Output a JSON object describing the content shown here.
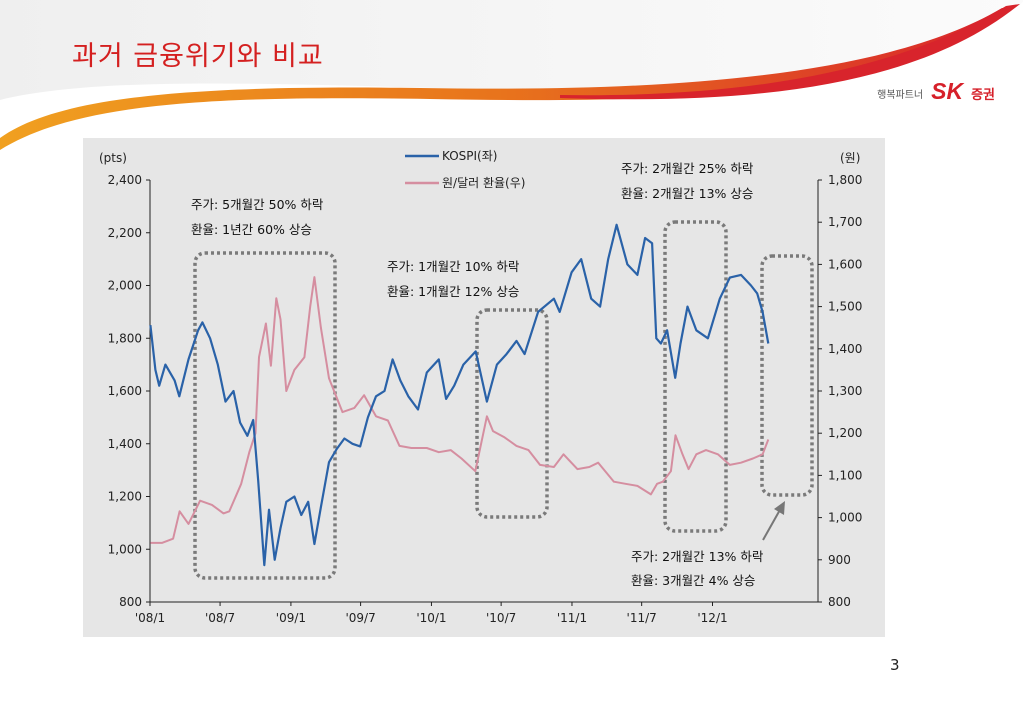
{
  "slide": {
    "title": "과거 금융위기와 비교",
    "page_number": "3",
    "brand": {
      "tagline": "행복파트너",
      "logo": "SK",
      "subtitle": "증권"
    },
    "colors": {
      "title": "#d42020",
      "brand_red": "#d6202a",
      "swoosh_orange": "#f0a020",
      "swoosh_red": "#d8242c"
    }
  },
  "chart_data": {
    "type": "line",
    "left_axis": {
      "label": "(pts)",
      "ticks": [
        "2,400",
        "2,200",
        "2,000",
        "1,800",
        "1,600",
        "1,400",
        "1,200",
        "1,000",
        "800"
      ],
      "ylim": [
        800,
        2400
      ]
    },
    "right_axis": {
      "label": "(원)",
      "ticks": [
        "1,800",
        "1,700",
        "1,600",
        "1,500",
        "1,400",
        "1,300",
        "1,200",
        "1,100",
        "1,000",
        "900",
        "800"
      ],
      "ylim": [
        800,
        1800
      ]
    },
    "x_ticks": [
      "'08/1",
      "'08/7",
      "'09/1",
      "'09/7",
      "'10/1",
      "'10/7",
      "'11/1",
      "'11/7",
      "'12/1"
    ],
    "x_range": [
      "2008-01",
      "2012-10"
    ],
    "legend_position": "top-center",
    "series": [
      {
        "name": "KOSPI(좌)",
        "axis": "left",
        "color": "#2a62a8",
        "points": [
          [
            "2008-01-02",
            1850
          ],
          [
            "2008-01-15",
            1680
          ],
          [
            "2008-01-25",
            1620
          ],
          [
            "2008-02-10",
            1700
          ],
          [
            "2008-03-05",
            1640
          ],
          [
            "2008-03-17",
            1580
          ],
          [
            "2008-04-10",
            1720
          ],
          [
            "2008-05-05",
            1830
          ],
          [
            "2008-05-16",
            1860
          ],
          [
            "2008-06-05",
            1800
          ],
          [
            "2008-06-25",
            1700
          ],
          [
            "2008-07-15",
            1560
          ],
          [
            "2008-08-05",
            1600
          ],
          [
            "2008-08-22",
            1480
          ],
          [
            "2008-09-10",
            1430
          ],
          [
            "2008-09-25",
            1490
          ],
          [
            "2008-10-08",
            1260
          ],
          [
            "2008-10-24",
            940
          ],
          [
            "2008-11-05",
            1150
          ],
          [
            "2008-11-20",
            960
          ],
          [
            "2008-12-05",
            1080
          ],
          [
            "2008-12-20",
            1180
          ],
          [
            "2009-01-10",
            1200
          ],
          [
            "2009-01-28",
            1130
          ],
          [
            "2009-02-15",
            1180
          ],
          [
            "2009-03-03",
            1020
          ],
          [
            "2009-03-20",
            1160
          ],
          [
            "2009-04-10",
            1330
          ],
          [
            "2009-04-30",
            1380
          ],
          [
            "2009-05-20",
            1420
          ],
          [
            "2009-06-10",
            1400
          ],
          [
            "2009-06-30",
            1390
          ],
          [
            "2009-07-20",
            1500
          ],
          [
            "2009-08-10",
            1580
          ],
          [
            "2009-09-01",
            1600
          ],
          [
            "2009-09-22",
            1720
          ],
          [
            "2009-10-12",
            1640
          ],
          [
            "2009-11-02",
            1580
          ],
          [
            "2009-11-27",
            1530
          ],
          [
            "2009-12-20",
            1670
          ],
          [
            "2010-01-20",
            1720
          ],
          [
            "2010-02-08",
            1570
          ],
          [
            "2010-03-01",
            1620
          ],
          [
            "2010-03-25",
            1700
          ],
          [
            "2010-04-26",
            1750
          ],
          [
            "2010-05-25",
            1560
          ],
          [
            "2010-06-20",
            1700
          ],
          [
            "2010-07-15",
            1740
          ],
          [
            "2010-08-10",
            1790
          ],
          [
            "2010-08-31",
            1740
          ],
          [
            "2010-10-05",
            1900
          ],
          [
            "2010-11-15",
            1950
          ],
          [
            "2010-11-30",
            1900
          ],
          [
            "2010-12-31",
            2050
          ],
          [
            "2011-01-25",
            2100
          ],
          [
            "2011-02-20",
            1950
          ],
          [
            "2011-03-15",
            1920
          ],
          [
            "2011-04-05",
            2100
          ],
          [
            "2011-04-27",
            2230
          ],
          [
            "2011-05-25",
            2080
          ],
          [
            "2011-06-20",
            2040
          ],
          [
            "2011-07-10",
            2180
          ],
          [
            "2011-07-28",
            2160
          ],
          [
            "2011-08-08",
            1800
          ],
          [
            "2011-08-20",
            1780
          ],
          [
            "2011-09-05",
            1830
          ],
          [
            "2011-09-26",
            1650
          ],
          [
            "2011-10-10",
            1780
          ],
          [
            "2011-10-28",
            1920
          ],
          [
            "2011-11-20",
            1830
          ],
          [
            "2011-12-20",
            1800
          ],
          [
            "2012-01-20",
            1950
          ],
          [
            "2012-02-15",
            2030
          ],
          [
            "2012-03-15",
            2040
          ],
          [
            "2012-04-10",
            2000
          ],
          [
            "2012-04-26",
            1970
          ],
          [
            "2012-05-10",
            1900
          ],
          [
            "2012-05-25",
            1780
          ]
        ]
      },
      {
        "name": "원/달러 환율(우)",
        "axis": "right",
        "color": "#d58ea0",
        "points": [
          [
            "2008-01-02",
            940
          ],
          [
            "2008-02-01",
            940
          ],
          [
            "2008-03-01",
            950
          ],
          [
            "2008-03-18",
            1015
          ],
          [
            "2008-04-10",
            985
          ],
          [
            "2008-05-10",
            1040
          ],
          [
            "2008-06-10",
            1030
          ],
          [
            "2008-07-10",
            1010
          ],
          [
            "2008-07-25",
            1015
          ],
          [
            "2008-08-25",
            1080
          ],
          [
            "2008-09-15",
            1155
          ],
          [
            "2008-10-01",
            1200
          ],
          [
            "2008-10-10",
            1380
          ],
          [
            "2008-10-28",
            1460
          ],
          [
            "2008-11-10",
            1360
          ],
          [
            "2008-11-24",
            1520
          ],
          [
            "2008-12-05",
            1470
          ],
          [
            "2008-12-20",
            1300
          ],
          [
            "2009-01-10",
            1350
          ],
          [
            "2009-02-05",
            1380
          ],
          [
            "2009-02-20",
            1500
          ],
          [
            "2009-03-03",
            1570
          ],
          [
            "2009-03-20",
            1450
          ],
          [
            "2009-04-10",
            1330
          ],
          [
            "2009-05-15",
            1250
          ],
          [
            "2009-06-15",
            1260
          ],
          [
            "2009-07-10",
            1290
          ],
          [
            "2009-08-10",
            1240
          ],
          [
            "2009-09-10",
            1230
          ],
          [
            "2009-10-10",
            1170
          ],
          [
            "2009-11-10",
            1165
          ],
          [
            "2009-12-20",
            1165
          ],
          [
            "2010-01-20",
            1155
          ],
          [
            "2010-02-20",
            1160
          ],
          [
            "2010-03-20",
            1140
          ],
          [
            "2010-04-25",
            1110
          ],
          [
            "2010-05-25",
            1240
          ],
          [
            "2010-06-10",
            1205
          ],
          [
            "2010-07-10",
            1190
          ],
          [
            "2010-08-10",
            1170
          ],
          [
            "2010-09-10",
            1160
          ],
          [
            "2010-10-10",
            1125
          ],
          [
            "2010-11-15",
            1120
          ],
          [
            "2010-12-10",
            1150
          ],
          [
            "2011-01-15",
            1115
          ],
          [
            "2011-02-15",
            1120
          ],
          [
            "2011-03-10",
            1130
          ],
          [
            "2011-04-20",
            1085
          ],
          [
            "2011-05-20",
            1080
          ],
          [
            "2011-06-20",
            1075
          ],
          [
            "2011-07-25",
            1055
          ],
          [
            "2011-08-10",
            1080
          ],
          [
            "2011-08-25",
            1085
          ],
          [
            "2011-09-15",
            1110
          ],
          [
            "2011-09-27",
            1195
          ],
          [
            "2011-10-15",
            1150
          ],
          [
            "2011-10-31",
            1115
          ],
          [
            "2011-11-20",
            1150
          ],
          [
            "2011-12-15",
            1160
          ],
          [
            "2012-01-15",
            1150
          ],
          [
            "2012-02-15",
            1125
          ],
          [
            "2012-03-15",
            1130
          ],
          [
            "2012-04-15",
            1140
          ],
          [
            "2012-05-10",
            1150
          ],
          [
            "2012-05-25",
            1185
          ]
        ]
      }
    ],
    "annotations": [
      {
        "lines": [
          "주가: 5개월간 50% 하락",
          "환율: 1년간 60% 상승"
        ]
      },
      {
        "lines": [
          "주가: 1개월간 10% 하락",
          "환율: 1개월간 12% 상승"
        ]
      },
      {
        "lines": [
          "주가: 2개월간 25% 하락",
          "환율: 2개월간 13% 상승"
        ]
      },
      {
        "lines": [
          "주가: 2개월간 13% 하락",
          "환율: 3개월간 4% 상승"
        ]
      }
    ]
  }
}
